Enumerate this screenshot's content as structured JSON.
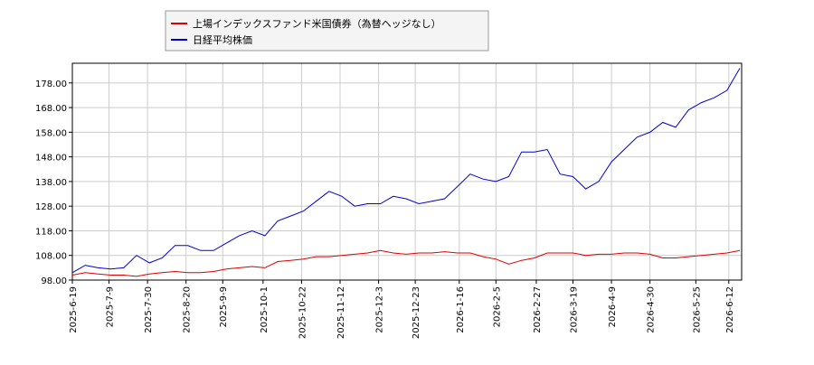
{
  "chart_data": {
    "type": "line",
    "x": [
      "2025-6-19",
      "2025-6-26",
      "2025-7-3",
      "2025-7-10",
      "2025-7-17",
      "2025-7-24",
      "2025-7-31",
      "2025-8-7",
      "2025-8-14",
      "2025-8-21",
      "2025-8-28",
      "2025-9-4",
      "2025-9-11",
      "2025-9-18",
      "2025-9-25",
      "2025-10-2",
      "2025-10-9",
      "2025-10-16",
      "2025-10-23",
      "2025-10-30",
      "2025-11-6",
      "2025-11-13",
      "2025-11-20",
      "2025-11-27",
      "2025-12-4",
      "2025-12-11",
      "2025-12-18",
      "2025-12-25",
      "2026-1-1",
      "2026-1-8",
      "2026-1-15",
      "2026-1-22",
      "2026-1-29",
      "2026-2-5",
      "2026-2-12",
      "2026-2-19",
      "2026-2-26",
      "2026-3-5",
      "2026-3-12",
      "2026-3-19",
      "2026-3-26",
      "2026-4-2",
      "2026-4-9",
      "2026-4-16",
      "2026-4-23",
      "2026-4-30",
      "2026-5-7",
      "2026-5-14",
      "2026-5-21",
      "2026-5-28",
      "2026-6-4",
      "2026-6-11",
      "2026-6-18"
    ],
    "series": [
      {
        "name": "上場インデックスファンド米国債券（為替ヘッジなし）",
        "color": "#dd0000",
        "values": [
          100,
          101,
          100.5,
          100,
          100,
          99.5,
          100.5,
          101,
          101.5,
          101,
          101,
          101.5,
          102.5,
          103,
          103.5,
          103,
          105.5,
          106,
          106.5,
          107.5,
          107.5,
          108,
          108.5,
          109,
          110,
          109,
          108.5,
          109,
          109,
          109.5,
          109,
          109,
          107.5,
          106.5,
          104.5,
          106,
          107,
          109,
          109,
          109,
          108,
          108.5,
          108.5,
          109,
          109,
          108.5,
          107,
          107,
          107.5,
          108,
          108.5,
          109,
          110
        ]
      },
      {
        "name": "日経平均株価",
        "color": "#0000cc",
        "values": [
          101,
          104,
          103,
          102.5,
          103,
          108,
          105,
          107,
          112,
          112,
          110,
          110,
          113,
          116,
          118,
          116,
          122,
          124,
          126,
          130,
          134,
          132,
          128,
          129,
          129,
          132,
          131,
          129,
          130,
          131,
          136,
          141,
          139,
          138,
          140,
          150,
          150,
          151,
          141,
          140,
          135,
          138,
          146,
          151,
          156,
          158,
          162,
          160,
          167,
          170,
          172,
          175,
          184
        ]
      }
    ],
    "xlim": [
      "2025-6-19",
      "2026-6-19"
    ],
    "xticks": [
      "2025-6-19",
      "2025-7-9",
      "2025-7-30",
      "2025-8-20",
      "2025-9-9",
      "2025-10-1",
      "2025-10-22",
      "2025-11-12",
      "2025-12-3",
      "2025-12-23",
      "2026-1-16",
      "2026-2-5",
      "2026-2-27",
      "2026-3-19",
      "2026-4-9",
      "2026-4-30",
      "2026-5-25",
      "2026-6-12"
    ],
    "ylim": [
      98,
      186
    ],
    "yticks": [
      {
        "value": 98,
        "label": "98.00"
      },
      {
        "value": 108,
        "label": "108.00"
      },
      {
        "value": 118,
        "label": "118.00"
      },
      {
        "value": 128,
        "label": "128.00"
      },
      {
        "value": 138,
        "label": "138.00"
      },
      {
        "value": 148,
        "label": "148.00"
      },
      {
        "value": 158,
        "label": "158.00"
      },
      {
        "value": 168,
        "label": "168.00"
      },
      {
        "value": 178,
        "label": "178.00"
      }
    ],
    "grid": true
  }
}
